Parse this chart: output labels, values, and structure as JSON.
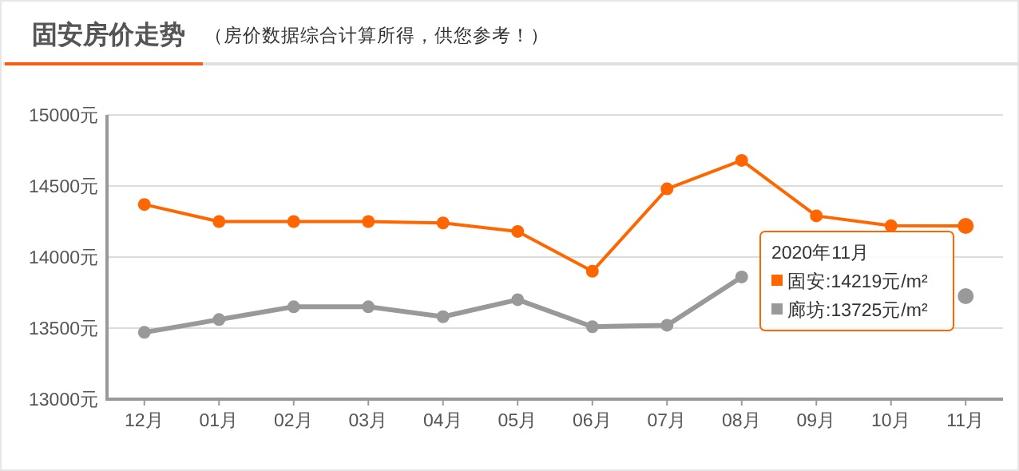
{
  "chart_data": {
    "type": "line",
    "title": "固安房价走势",
    "subtitle": "（房价数据综合计算所得，供您参考！）",
    "categories": [
      "12月",
      "01月",
      "02月",
      "03月",
      "04月",
      "05月",
      "06月",
      "07月",
      "08月",
      "09月",
      "10月",
      "11月"
    ],
    "series": [
      {
        "name": "固安",
        "color": "#ff6600",
        "values": [
          14370,
          14250,
          14250,
          14250,
          14240,
          14180,
          13900,
          14480,
          14680,
          14290,
          14220,
          14219
        ],
        "value_labels": [
          null,
          null,
          null,
          null,
          null,
          null,
          null,
          null,
          null,
          null,
          null,
          ":14219元/m²"
        ]
      },
      {
        "name": "廊坊",
        "color": "#999999",
        "values": [
          13470,
          13560,
          13650,
          13650,
          13580,
          13700,
          13510,
          13520,
          13860,
          null,
          null,
          13725
        ],
        "value_labels": [
          null,
          null,
          null,
          null,
          null,
          null,
          null,
          null,
          null,
          null,
          null,
          ":13725元/m²"
        ]
      }
    ],
    "annotations": [
      "2020年11月"
    ],
    "ylim": [
      13000,
      15000
    ],
    "yticks": [
      {
        "value": 13000,
        "label": "13000元"
      },
      {
        "value": 13500,
        "label": "13500元"
      },
      {
        "value": 14000,
        "label": "14000元"
      },
      {
        "value": 14500,
        "label": "14500元"
      },
      {
        "value": 15000,
        "label": "15000元"
      }
    ],
    "grid": "y",
    "marker": "circle",
    "line_style": "solid",
    "legend": "right"
  }
}
